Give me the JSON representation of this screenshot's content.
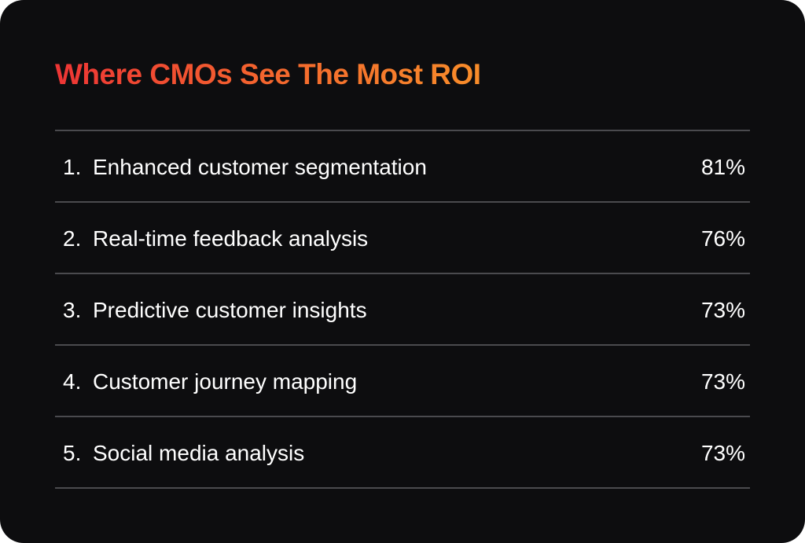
{
  "title": "Where CMOs See The Most ROI",
  "table": {
    "rows": [
      [
        "1.",
        "Enhanced customer segmentation",
        "81%"
      ],
      [
        "2.",
        "Real-time feedback analysis",
        "76%"
      ],
      [
        "3.",
        "Predictive customer insights",
        "73%"
      ],
      [
        "4.",
        "Customer journey mapping",
        "73%"
      ],
      [
        "5.",
        "Social media analysis",
        "73%"
      ]
    ]
  }
}
